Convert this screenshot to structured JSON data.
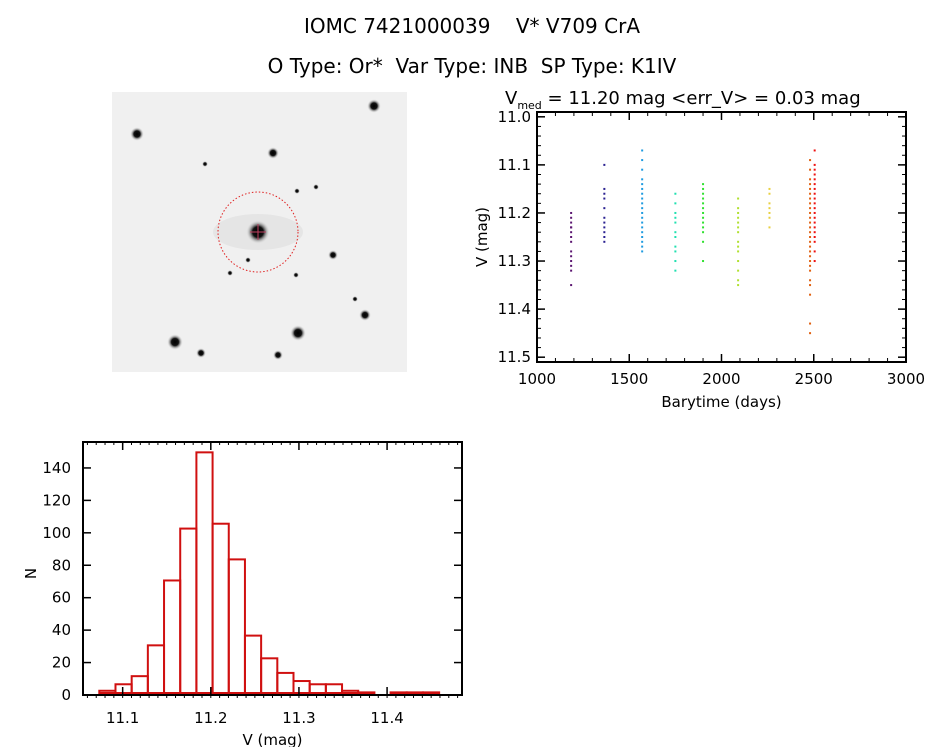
{
  "header": {
    "title_line1": "IOMC 7421000039    V* V709 CrA",
    "title_line2": "O Type: Or*  Var Type: INB  SP Type: K1IV"
  },
  "image_panel": {
    "kind": "finder-chart",
    "background": "#f0f0f0",
    "marker_color": "#e02020"
  },
  "chart_data": [
    {
      "type": "scatter",
      "title_main": "V",
      "title_sub": "med",
      "title_rest": " = 11.20 mag <err_V> = 0.03 mag",
      "xlabel": "Barytime (days)",
      "ylabel": "V (mag)",
      "xlim": [
        1000,
        3000
      ],
      "ylim": [
        11.51,
        10.99
      ],
      "y_inverted": true,
      "xticks": [
        "1000",
        "1500",
        "2000",
        "2500",
        "3000"
      ],
      "yticks": [
        "11.0",
        "11.1",
        "11.2",
        "11.3",
        "11.4",
        "11.5"
      ],
      "grid": false,
      "groups": [
        {
          "t": 1185,
          "color": "#5a1470",
          "mags": [
            11.2,
            11.21,
            11.22,
            11.23,
            11.23,
            11.24,
            11.25,
            11.26,
            11.28,
            11.29,
            11.3,
            11.31,
            11.32,
            11.35
          ]
        },
        {
          "t": 1365,
          "color": "#2a2090",
          "mags": [
            11.1,
            11.15,
            11.16,
            11.17,
            11.19,
            11.21,
            11.22,
            11.23,
            11.24,
            11.25,
            11.26
          ]
        },
        {
          "t": 1570,
          "color": "#1e9be0",
          "mags": [
            11.07,
            11.09,
            11.11,
            11.13,
            11.14,
            11.15,
            11.16,
            11.17,
            11.18,
            11.19,
            11.2,
            11.21,
            11.22,
            11.23,
            11.24,
            11.25,
            11.26,
            11.27,
            11.28
          ]
        },
        {
          "t": 1750,
          "color": "#20e0b0",
          "mags": [
            11.16,
            11.18,
            11.2,
            11.21,
            11.22,
            11.24,
            11.25,
            11.27,
            11.28,
            11.3,
            11.32
          ]
        },
        {
          "t": 1900,
          "color": "#30e030",
          "mags": [
            11.14,
            11.15,
            11.16,
            11.17,
            11.18,
            11.19,
            11.2,
            11.21,
            11.22,
            11.23,
            11.24,
            11.26,
            11.3
          ]
        },
        {
          "t": 2090,
          "color": "#b0e030",
          "mags": [
            11.17,
            11.19,
            11.2,
            11.21,
            11.22,
            11.23,
            11.24,
            11.26,
            11.27,
            11.28,
            11.3,
            11.32,
            11.34,
            11.35
          ]
        },
        {
          "t": 2260,
          "color": "#e8d040",
          "mags": [
            11.15,
            11.16,
            11.18,
            11.19,
            11.2,
            11.21,
            11.23
          ]
        },
        {
          "t": 2480,
          "color": "#e06010",
          "mags": [
            11.09,
            11.11,
            11.13,
            11.14,
            11.15,
            11.16,
            11.17,
            11.18,
            11.19,
            11.2,
            11.21,
            11.22,
            11.23,
            11.24,
            11.25,
            11.26,
            11.27,
            11.28,
            11.29,
            11.3,
            11.31,
            11.32,
            11.34,
            11.35,
            11.37,
            11.43,
            11.45
          ]
        },
        {
          "t": 2505,
          "color": "#ee1010",
          "mags": [
            11.07,
            11.1,
            11.11,
            11.12,
            11.13,
            11.14,
            11.15,
            11.16,
            11.17,
            11.18,
            11.19,
            11.2,
            11.21,
            11.22,
            11.23,
            11.24,
            11.25,
            11.26,
            11.28,
            11.3
          ]
        }
      ]
    },
    {
      "type": "bar",
      "style": "histogram-outline",
      "color": "#d01010",
      "xlabel": "V (mag)",
      "ylabel": "N",
      "xlim": [
        11.055,
        11.485
      ],
      "ylim": [
        0,
        156
      ],
      "xticks": [
        "11.1",
        "11.2",
        "11.3",
        "11.4"
      ],
      "yticks": [
        "0",
        "20",
        "40",
        "60",
        "80",
        "100",
        "120",
        "140"
      ],
      "grid": false,
      "bin_start": 11.0735,
      "bin_width": 0.01836,
      "values": [
        2,
        6,
        11,
        30,
        70,
        102,
        149,
        105,
        83,
        36,
        22,
        13,
        8,
        6,
        6,
        2,
        1,
        0,
        1,
        1,
        1
      ]
    }
  ]
}
